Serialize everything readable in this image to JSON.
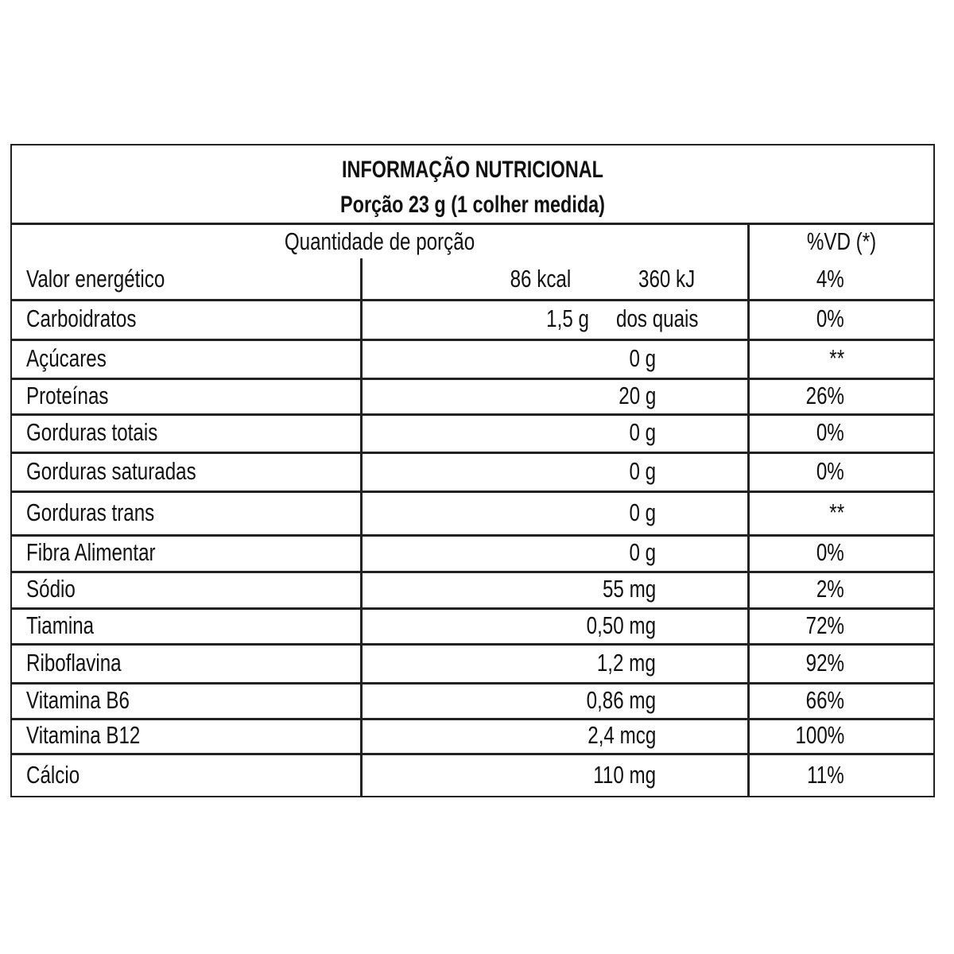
{
  "header": {
    "title": "INFORMAÇÃO NUTRICIONAL",
    "serving": "Porção 23 g (1 colher medida)"
  },
  "columns": {
    "quantity": "Quantidade de porção",
    "dv": "%VD (*)"
  },
  "rows": [
    {
      "name": "Valor energético",
      "amount": "86 kcal",
      "amount2": "360 kJ",
      "dv": "4%"
    },
    {
      "name": "Carboidratos",
      "amount": "1,5 g",
      "amount2": "dos quais",
      "dv": "0%"
    },
    {
      "name": "Açúcares",
      "amount": "0 g",
      "dv": "**"
    },
    {
      "name": "Proteínas",
      "amount": "20 g",
      "dv": "26%"
    },
    {
      "name": "Gorduras totais",
      "amount": "0 g",
      "dv": "0%"
    },
    {
      "name": "Gorduras saturadas",
      "amount": "0 g",
      "dv": "0%"
    },
    {
      "name": "Gorduras trans",
      "amount": "0 g",
      "dv": "**"
    },
    {
      "name": "Fibra Alimentar",
      "amount": "0 g",
      "dv": "0%"
    },
    {
      "name": "Sódio",
      "amount": "55 mg",
      "dv": "2%"
    },
    {
      "name": "Tiamina",
      "amount": "0,50 mg",
      "dv": "72%"
    },
    {
      "name": "Riboflavina",
      "amount": "1,2 mg",
      "dv": "92%"
    },
    {
      "name": "Vitamina B6",
      "amount": "0,86 mg",
      "dv": "66%"
    },
    {
      "name": "Vitamina B12",
      "amount": "2,4 mcg",
      "dv": "100%"
    },
    {
      "name": "Cálcio",
      "amount": "110 mg",
      "dv": "11%"
    }
  ]
}
